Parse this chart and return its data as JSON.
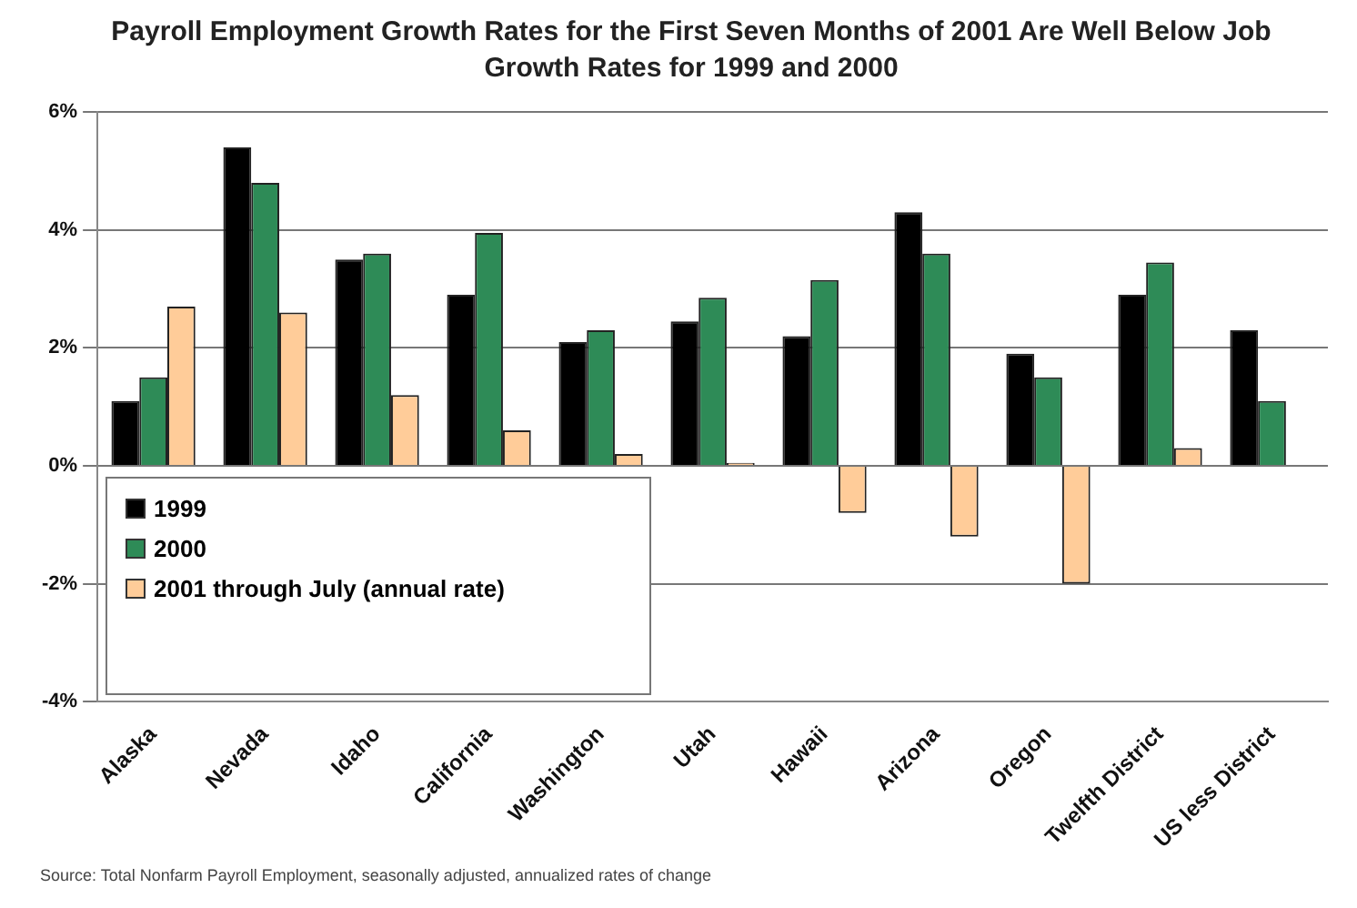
{
  "chart_data": {
    "type": "bar",
    "title": "Payroll Employment Growth Rates for the First Seven Months of 2001 Are Well Below Job Growth Rates for 1999 and 2000",
    "categories": [
      "Alaska",
      "Nevada",
      "Idaho",
      "California",
      "Washington",
      "Utah",
      "Hawaii",
      "Arizona",
      "Oregon",
      "Twelfth District",
      "US less District"
    ],
    "series": [
      {
        "name": "1999",
        "color": "#000000",
        "values": [
          1.1,
          5.4,
          3.5,
          2.9,
          2.1,
          2.45,
          2.2,
          4.3,
          1.9,
          2.9,
          2.3
        ]
      },
      {
        "name": "2000",
        "color": "#2e8b57",
        "values": [
          1.5,
          4.8,
          3.6,
          3.95,
          2.3,
          2.85,
          3.15,
          3.6,
          1.5,
          3.45,
          1.1
        ]
      },
      {
        "name": "2001 through July (annual rate)",
        "color": "#ffcc99",
        "values": [
          2.7,
          2.6,
          1.2,
          0.6,
          0.2,
          0.05,
          -0.8,
          -1.2,
          -2.0,
          0.3,
          null
        ]
      }
    ],
    "ylim": [
      -4,
      6
    ],
    "yticks": [
      {
        "value": -4,
        "label": "-4%"
      },
      {
        "value": -2,
        "label": "-2%"
      },
      {
        "value": 0,
        "label": "0%"
      },
      {
        "value": 2,
        "label": "2%"
      },
      {
        "value": 4,
        "label": "4%"
      },
      {
        "value": 6,
        "label": "6%"
      }
    ],
    "grid": "y",
    "legend": "bottom left",
    "annotations": [
      "Source: Total Nonfarm Payroll Employment, seasonally adjusted, annualized rates of change"
    ]
  }
}
